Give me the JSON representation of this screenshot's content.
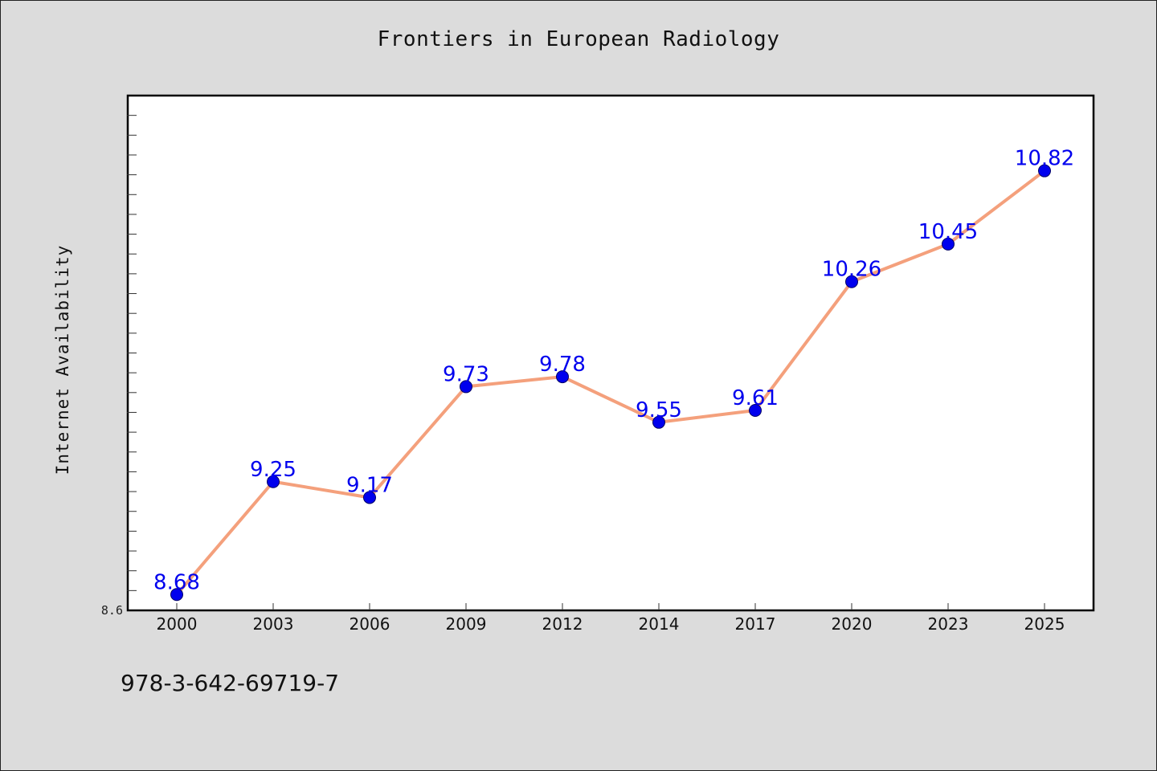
{
  "title": "Frontiers in European Radiology",
  "ylabel": "Internet Availability",
  "footer_text": "978-3-642-69719-7",
  "colors": {
    "background": "#dcdcdc",
    "plot_background": "#ffffff",
    "line": "#f4a07c",
    "marker": "#0000ee",
    "label": "#0000ee"
  },
  "chart_data": {
    "type": "line",
    "title": "Frontiers in European Radiology",
    "xlabel": "",
    "ylabel": "Internet Availability",
    "categories": [
      "2000",
      "2003",
      "2006",
      "2009",
      "2012",
      "2014",
      "2017",
      "2020",
      "2023",
      "2025"
    ],
    "values": [
      8.68,
      9.25,
      9.17,
      9.73,
      9.78,
      9.55,
      9.61,
      10.26,
      10.45,
      10.82
    ],
    "data_labels": [
      "8.68",
      "9.25",
      "9.17",
      "9.73",
      "9.78",
      "9.55",
      "9.61",
      "10.26",
      "10.45",
      "10.82"
    ],
    "y_tick_labels": [
      "8.6"
    ],
    "ylim": [
      8.6,
      11.2
    ],
    "grid": false,
    "legend": false
  }
}
